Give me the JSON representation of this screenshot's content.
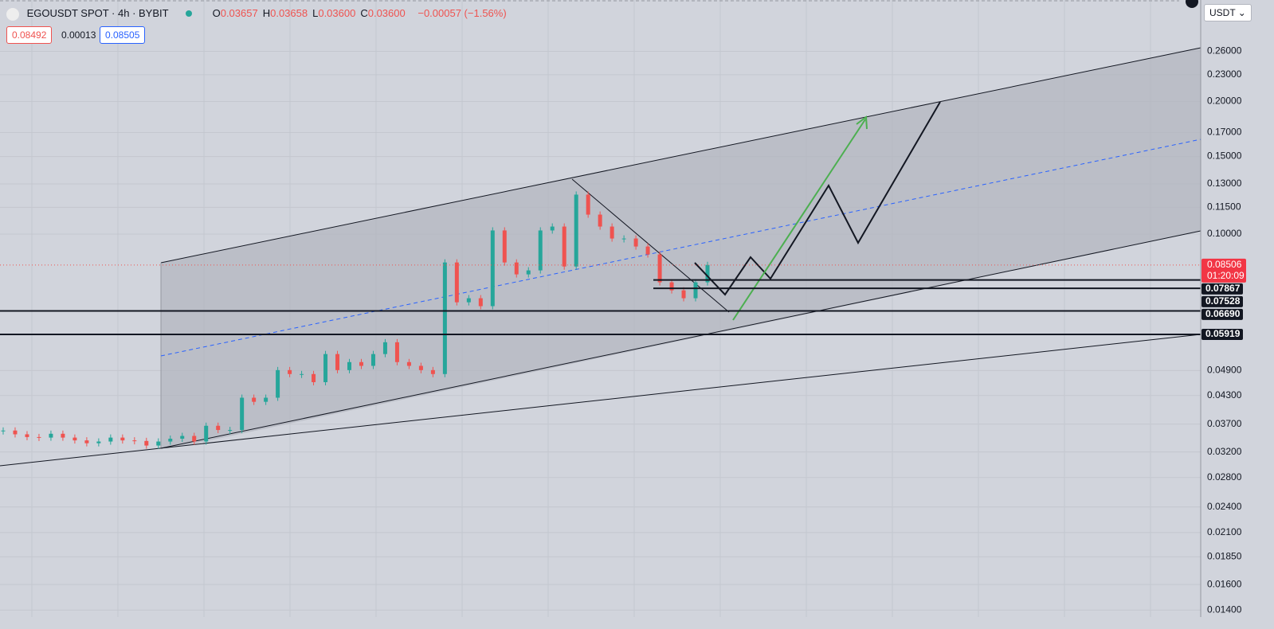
{
  "header": {
    "symbol": "EGOUSDT SPOT · 4h · BYBIT",
    "ohlc": [
      {
        "key": "O",
        "value": "0.03657"
      },
      {
        "key": "H",
        "value": "0.03658"
      },
      {
        "key": "L",
        "value": "0.03600"
      },
      {
        "key": "C",
        "value": "0.03600"
      }
    ],
    "change": "−0.00057 (−1.56%)",
    "bid": "0.08492",
    "spread": "0.00013",
    "ask": "0.08505",
    "currency": "USDT"
  },
  "chart_data": {
    "type": "candlestick",
    "close": [
      0.0358,
      0.0351,
      0.0346,
      0.0345,
      0.0352,
      0.0345,
      0.034,
      0.0335,
      0.0338,
      0.0345,
      0.034,
      0.0339,
      0.0331,
      0.0338,
      0.0343,
      0.0348,
      0.0338,
      0.0367,
      0.0359,
      0.0359,
      0.0425,
      0.0416,
      0.0425,
      0.0491,
      0.0481,
      0.0481,
      0.0461,
      0.0534,
      0.0491,
      0.0512,
      0.0502,
      0.0534,
      0.0568,
      0.0512,
      0.0502,
      0.0491,
      0.0481,
      0.0862,
      0.07,
      0.0715,
      0.0686,
      0.1019,
      0.0862,
      0.081,
      0.0827,
      0.1019,
      0.104,
      0.0844,
      0.1229,
      0.1107,
      0.104,
      0.0977,
      0.0977,
      0.0937,
      0.0899,
      0.0777,
      0.0745,
      0.0715,
      0.0777,
      0.0851
    ],
    "up_color": "#26a69a",
    "down_color": "#ef5350",
    "log_scale": true,
    "grid": true,
    "ylim": [
      0.0135,
      0.34
    ],
    "yticks": [
      {
        "value": 0.26,
        "label": "0.26000"
      },
      {
        "value": 0.23,
        "label": "0.23000"
      },
      {
        "value": 0.2,
        "label": "0.20000"
      },
      {
        "value": 0.17,
        "label": "0.17000"
      },
      {
        "value": 0.15,
        "label": "0.15000"
      },
      {
        "value": 0.13,
        "label": "0.13000"
      },
      {
        "value": 0.115,
        "label": "0.11500"
      },
      {
        "value": 0.1,
        "label": "0.10000"
      },
      {
        "value": 0.049,
        "label": "0.04900"
      },
      {
        "value": 0.043,
        "label": "0.04300"
      },
      {
        "value": 0.037,
        "label": "0.03700"
      },
      {
        "value": 0.032,
        "label": "0.03200"
      },
      {
        "value": 0.028,
        "label": "0.02800"
      },
      {
        "value": 0.024,
        "label": "0.02400"
      },
      {
        "value": 0.021,
        "label": "0.02100"
      },
      {
        "value": 0.0185,
        "label": "0.01850"
      },
      {
        "value": 0.016,
        "label": "0.01600"
      },
      {
        "value": 0.014,
        "label": "0.01400"
      }
    ],
    "last_price": 0.08506,
    "countdown": "01:20:09",
    "levels": [
      0.07867,
      0.07528,
      {
        "value": 0.0669,
        "label": "0.06690"
      },
      0.05919
    ]
  }
}
